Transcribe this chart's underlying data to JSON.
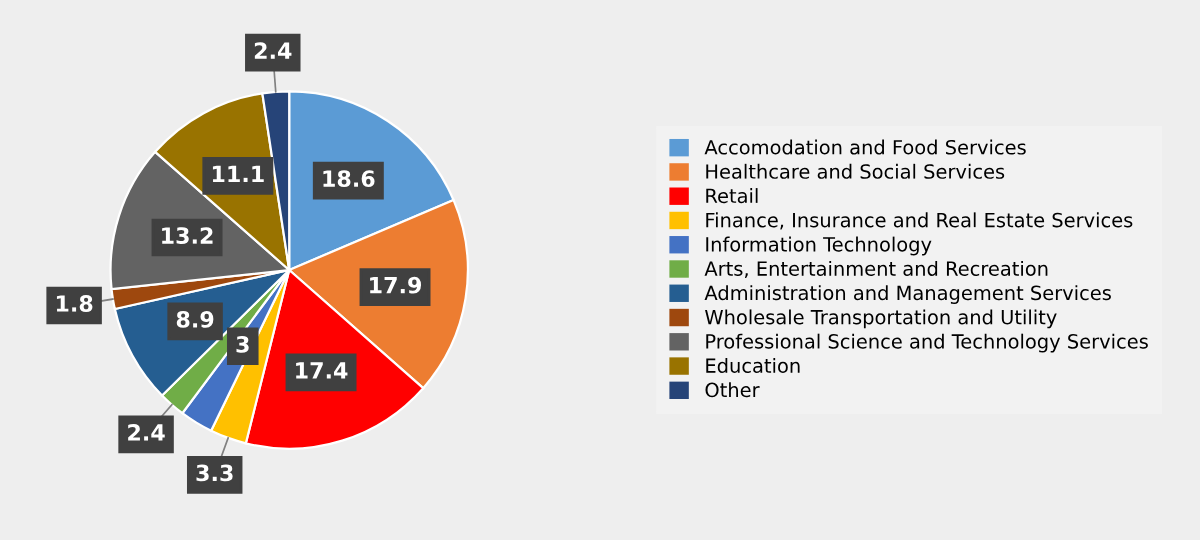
{
  "chart_data": {
    "type": "pie",
    "categories": [
      "Accomodation and Food Services",
      "Healthcare and Social Services",
      "Retail",
      "Finance, Insurance and Real Estate Services",
      "Information Technology",
      "Arts, Entertainment and Recreation",
      "Administration and Management Services",
      "Wholesale Transportation and Utility",
      "Professional Science and Technology Services",
      "Education",
      "Other"
    ],
    "values": [
      18.6,
      17.9,
      17.4,
      3.3,
      3,
      2.4,
      8.9,
      1.8,
      13.2,
      11.1,
      2.4
    ],
    "colors": [
      "#5b9bd5",
      "#ed7d31",
      "#ff0000",
      "#ffc000",
      "#4472c4",
      "#70ad47",
      "#255e91",
      "#9e480e",
      "#636363",
      "#997300",
      "#264478"
    ],
    "data_labels": true,
    "legend": "right"
  }
}
